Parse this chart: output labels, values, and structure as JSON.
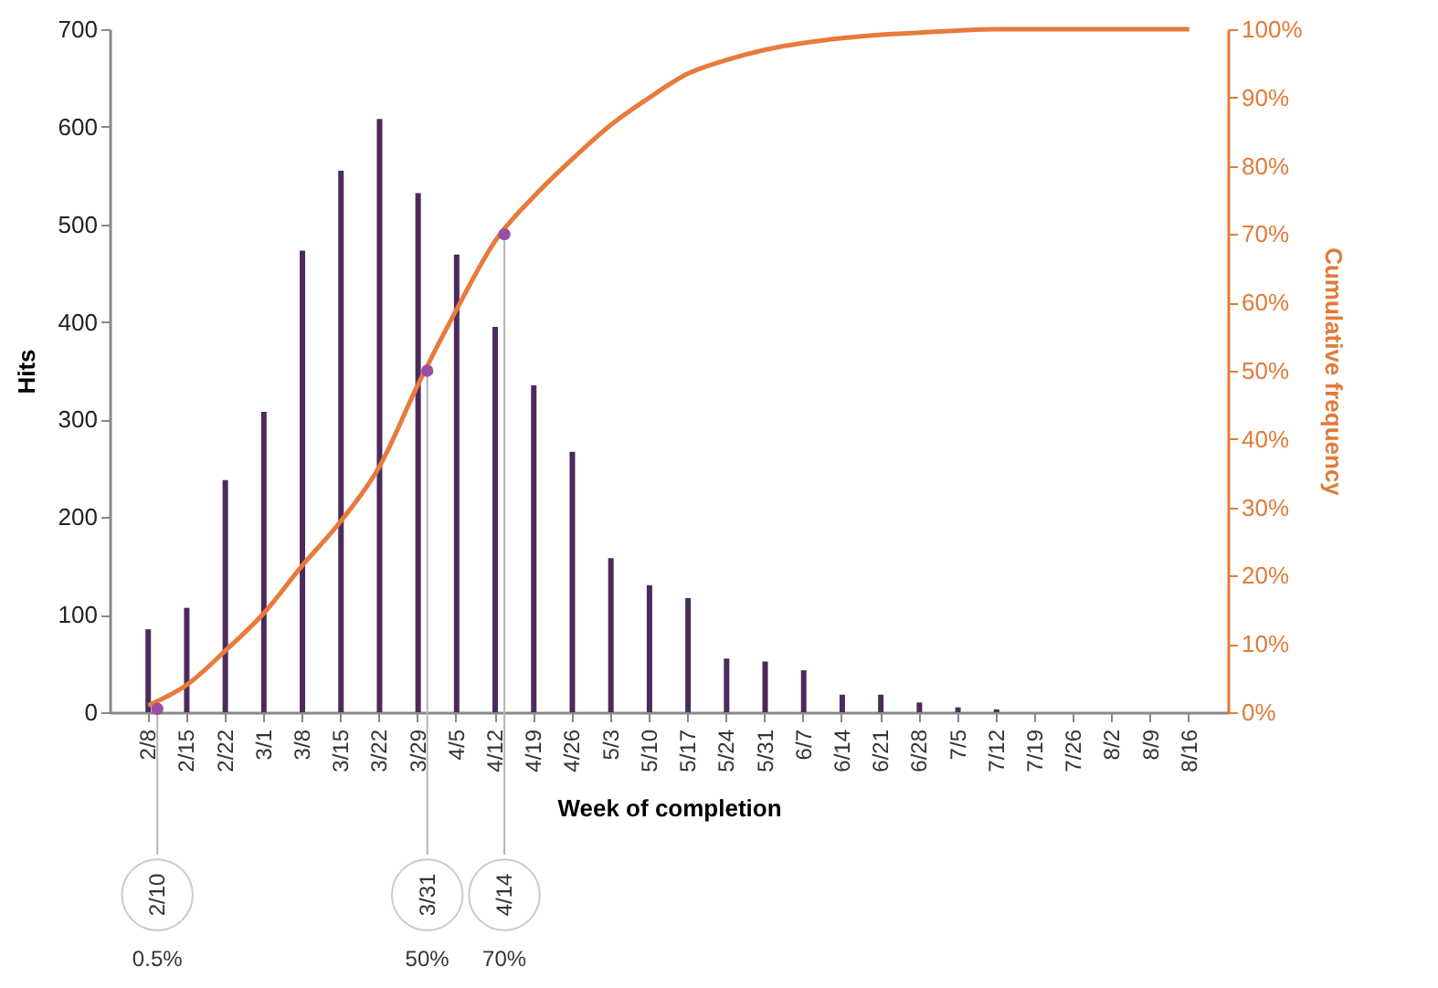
{
  "chart_data": {
    "type": "bar",
    "xlabel": "Week of completion",
    "ylabel": "Hits",
    "y2label": "Cumulative frequency",
    "categories": [
      "2/8",
      "2/15",
      "2/22",
      "3/1",
      "3/8",
      "3/15",
      "3/22",
      "3/29",
      "4/5",
      "4/12",
      "4/19",
      "4/26",
      "5/3",
      "5/10",
      "5/17",
      "5/24",
      "5/31",
      "6/7",
      "6/14",
      "6/21",
      "6/28",
      "7/5",
      "7/12",
      "7/19",
      "7/26",
      "8/2",
      "8/9",
      "8/16"
    ],
    "series": [
      {
        "color": "#4b2a5e",
        "values": [
          85,
          107,
          238,
          308,
          473,
          555,
          608,
          532,
          469,
          395,
          335,
          267,
          158,
          130,
          117,
          55,
          52,
          43,
          18,
          18,
          10,
          5,
          3,
          0,
          0,
          0,
          0,
          0
        ]
      },
      {
        "type": "line",
        "axis": "y2",
        "color": "#e87a3c",
        "values": [
          1,
          4,
          9,
          14.5,
          21.5,
          28,
          36,
          48,
          59,
          69,
          75.5,
          81,
          86,
          90,
          93.5,
          95.5,
          97,
          98,
          98.7,
          99.2,
          99.5,
          99.8,
          100,
          100,
          100,
          100,
          100,
          100
        ]
      },
      {
        "type": "scatter",
        "axis": "y2",
        "color": "#9a4fa0",
        "marker": "circle",
        "x": [
          "2/8",
          "3/29",
          "4/12"
        ],
        "values": [
          0.5,
          50,
          70
        ]
      }
    ],
    "ylim": [
      0,
      700
    ],
    "yticks": [
      0,
      100,
      200,
      300,
      400,
      500,
      600,
      700
    ],
    "y2lim": [
      0,
      100
    ],
    "y2ticks": [
      {
        "value": 0,
        "label": "0%"
      },
      {
        "value": 10,
        "label": "10%"
      },
      {
        "value": 20,
        "label": "20%"
      },
      {
        "value": 30,
        "label": "30%"
      },
      {
        "value": 40,
        "label": "40%"
      },
      {
        "value": 50,
        "label": "50%"
      },
      {
        "value": 60,
        "label": "60%"
      },
      {
        "value": 70,
        "label": "70%"
      },
      {
        "value": 80,
        "label": "80%"
      },
      {
        "value": 90,
        "label": "90%"
      },
      {
        "value": 100,
        "label": "100%"
      }
    ],
    "grid": false,
    "annotations": [
      "2/10",
      "0.5%",
      "3/31",
      "50%",
      "4/14",
      "70%"
    ]
  }
}
